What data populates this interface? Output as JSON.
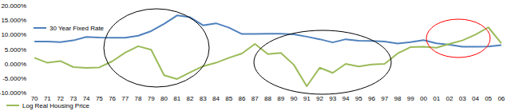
{
  "chart_data": {
    "type": "line",
    "categories": [
      "70",
      "71",
      "72",
      "73",
      "74",
      "75",
      "76",
      "77",
      "78",
      "79",
      "80",
      "81",
      "82",
      "83",
      "84",
      "85",
      "86",
      "87",
      "88",
      "89",
      "90",
      "91",
      "92",
      "93",
      "94",
      "95",
      "96",
      "97",
      "98",
      "99",
      "00",
      "01",
      "02",
      "03",
      "04",
      "05",
      "06"
    ],
    "series": [
      {
        "name": "30 Year Fixed Rate",
        "color": "#4f81bd",
        "values": [
          7.6,
          7.6,
          7.4,
          8.0,
          9.2,
          9.0,
          8.9,
          8.9,
          9.6,
          11.2,
          13.7,
          16.6,
          16.0,
          13.2,
          13.9,
          12.4,
          10.2,
          10.2,
          10.3,
          10.3,
          10.1,
          9.3,
          8.4,
          7.3,
          8.4,
          7.9,
          7.8,
          7.6,
          6.9,
          7.4,
          8.1,
          7.0,
          6.5,
          5.8,
          5.8,
          5.9,
          6.4
        ]
      },
      {
        "name": "Log Real Housing Price",
        "color": "#9bbb59",
        "values": [
          2.0,
          0.3,
          0.9,
          -1.2,
          -1.5,
          -1.3,
          0.8,
          3.8,
          6.0,
          4.8,
          -4.0,
          -5.3,
          -3.0,
          -0.9,
          0.3,
          2.0,
          3.5,
          6.8,
          3.3,
          3.7,
          -0.4,
          -7.8,
          -1.4,
          -3.2,
          -0.1,
          -1.0,
          -0.3,
          -0.1,
          3.5,
          5.7,
          5.8,
          5.5,
          6.8,
          8.0,
          10.0,
          12.5,
          7.0
        ]
      }
    ],
    "ylim": [
      -10,
      20
    ],
    "yticks": [
      {
        "value": -10,
        "label": "-10.000%"
      },
      {
        "value": -5,
        "label": "-5.000%"
      },
      {
        "value": 0,
        "label": "0.000%"
      },
      {
        "value": 5,
        "label": "5.000%"
      },
      {
        "value": 10,
        "label": "10.000%"
      },
      {
        "value": 15,
        "label": "15.000%"
      },
      {
        "value": 20,
        "label": "20.000%"
      }
    ],
    "grid": false
  }
}
